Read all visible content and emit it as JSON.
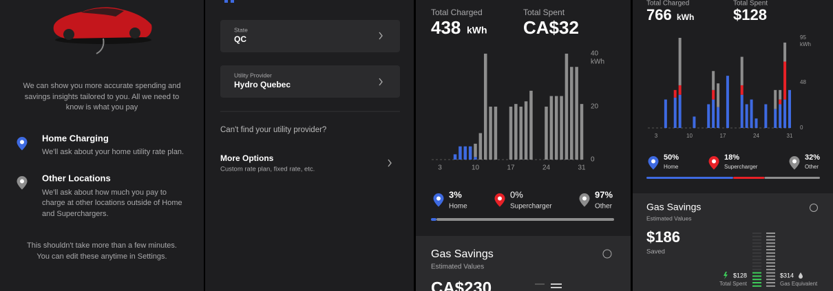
{
  "onboarding": {
    "intro_lines": [
      "We can show you more accurate spending and",
      "savings insights tailored to you. All we need to",
      "know is what you pay"
    ],
    "options": [
      {
        "title": "Home Charging",
        "lines": [
          "We'll ask about your home utility rate plan."
        ]
      },
      {
        "title": "Other Locations",
        "lines": [
          "We'll ask about how much you pay to",
          "charge at other locations outside of Home",
          "and Superchargers."
        ]
      }
    ],
    "footer_lines": [
      "This shouldn't take more than a few minutes.",
      "You can edit these anytime in Settings."
    ]
  },
  "utility_form": {
    "fields": [
      {
        "label": "State",
        "value": "QC"
      },
      {
        "label": "Utility Provider",
        "value": "Hydro Quebec"
      }
    ],
    "question": "Can't find your utility provider?",
    "more_options": {
      "title": "More Options",
      "subtitle": "Custom rate plan, fixed rate, etc."
    }
  },
  "summary_ca": {
    "total_charged": {
      "label": "Total Charged",
      "value": 438,
      "unit": "kWh"
    },
    "total_spent": {
      "label": "Total Spent",
      "value": "CA$32"
    },
    "chart": {
      "type": "bar",
      "stacked": true,
      "x": [
        1,
        2,
        3,
        4,
        5,
        6,
        7,
        8,
        9,
        10,
        11,
        12,
        13,
        14,
        15,
        16,
        17,
        18,
        19,
        20,
        21,
        22,
        23,
        24,
        25,
        26,
        27,
        28,
        29,
        30,
        31
      ],
      "xticks": [
        3,
        10,
        17,
        24,
        31
      ],
      "ylim": [
        0,
        40
      ],
      "yticks": [
        0,
        20,
        40
      ],
      "y_unit": "kWh",
      "series": [
        {
          "color": "#3e6ae1",
          "values": [
            0,
            0,
            0,
            0,
            0,
            2,
            5,
            5,
            5,
            1,
            0,
            0,
            0,
            0,
            0,
            0,
            0,
            0,
            0,
            0,
            0,
            0,
            0,
            0,
            0,
            0,
            0,
            0,
            0,
            0,
            0
          ]
        },
        {
          "color": "#8e8e8e",
          "values": [
            0,
            0,
            0,
            0,
            0,
            0,
            0,
            0,
            0,
            5,
            10,
            40,
            20,
            20,
            0,
            0,
            20,
            21,
            20,
            22,
            26,
            0,
            0,
            20,
            24,
            24,
            24,
            40,
            35,
            35,
            21
          ]
        }
      ]
    },
    "breakdown": [
      {
        "label": "Home",
        "value": 3,
        "value_label": "3%",
        "color": "#3e6ae1"
      },
      {
        "label": "Supercharger",
        "value": 0,
        "value_label": "0%",
        "color": "#e82127"
      },
      {
        "label": "Other",
        "value": 97,
        "value_label": "97%",
        "color": "#8e8e8e"
      }
    ],
    "gas": {
      "title": "Gas Savings",
      "subtitle": "Estimated Values",
      "value": "CA$230"
    }
  },
  "summary_us": {
    "total_charged": {
      "label": "Total Charged",
      "value": 766,
      "unit": "kWh"
    },
    "total_spent": {
      "label": "Total Spent",
      "value": "$128"
    },
    "chart": {
      "type": "bar",
      "stacked": true,
      "x": [
        1,
        2,
        3,
        4,
        5,
        6,
        7,
        8,
        9,
        10,
        11,
        12,
        13,
        14,
        15,
        16,
        17,
        18,
        19,
        20,
        21,
        22,
        23,
        24,
        25,
        26,
        27,
        28,
        29,
        30,
        31
      ],
      "xticks": [
        3,
        10,
        17,
        24,
        31
      ],
      "ylim": [
        0,
        95
      ],
      "yticks": [
        0,
        48,
        95
      ],
      "y_unit": "kWh",
      "series": [
        {
          "color": "#3e6ae1",
          "values": [
            0,
            0,
            0,
            0,
            30,
            0,
            32,
            35,
            0,
            0,
            12,
            0,
            0,
            25,
            30,
            22,
            0,
            55,
            0,
            0,
            35,
            25,
            30,
            10,
            0,
            25,
            0,
            20,
            25,
            30,
            40
          ]
        },
        {
          "color": "#e82127",
          "values": [
            0,
            0,
            0,
            0,
            0,
            0,
            8,
            10,
            0,
            0,
            0,
            0,
            0,
            0,
            10,
            0,
            0,
            0,
            0,
            0,
            10,
            0,
            0,
            0,
            0,
            0,
            0,
            0,
            5,
            40,
            0
          ]
        },
        {
          "color": "#8e8e8e",
          "values": [
            0,
            0,
            0,
            0,
            0,
            0,
            0,
            50,
            0,
            0,
            0,
            0,
            0,
            0,
            20,
            25,
            0,
            0,
            0,
            0,
            30,
            0,
            0,
            0,
            0,
            0,
            0,
            20,
            10,
            20,
            0
          ]
        }
      ]
    },
    "breakdown": [
      {
        "label": "Home",
        "value": 50,
        "value_label": "50%",
        "color": "#3e6ae1"
      },
      {
        "label": "Supercharger",
        "value": 18,
        "value_label": "18%",
        "color": "#e82127"
      },
      {
        "label": "Other",
        "value": 32,
        "value_label": "32%",
        "color": "#8e8e8e"
      }
    ],
    "gas": {
      "title": "Gas Savings",
      "subtitle": "Estimated Values",
      "value": "$186",
      "value_caption": "Saved",
      "spent": "$128",
      "spent_label": "Total Spent",
      "equivalent": "$314",
      "equivalent_label": "Gas Equivalent"
    }
  }
}
